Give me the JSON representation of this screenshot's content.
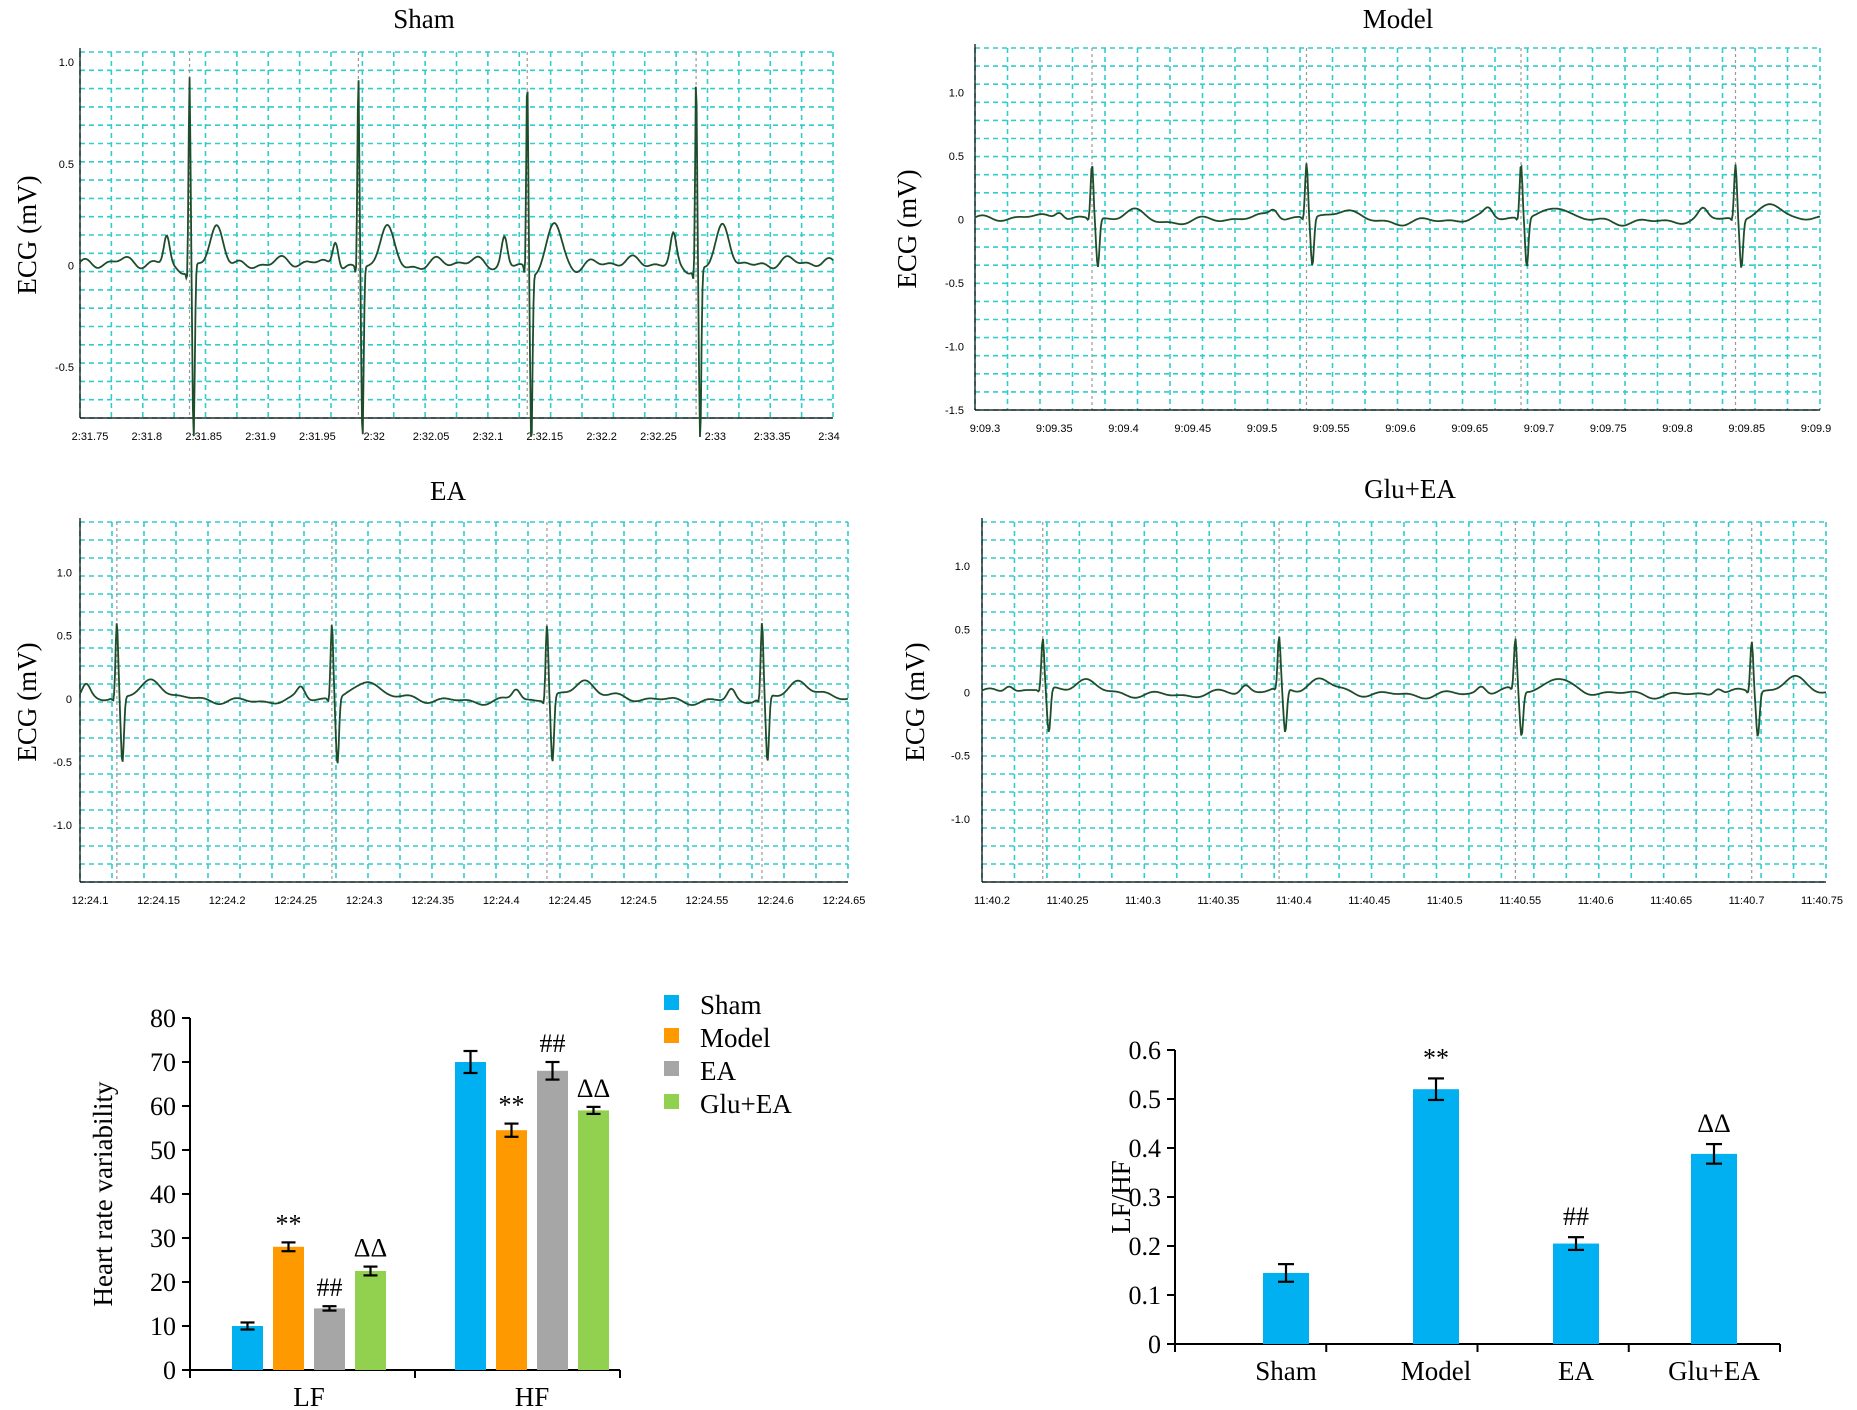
{
  "colors": {
    "grid": "#33cccc",
    "trace": "#1e4d2b",
    "sham": "#00b0f0",
    "model": "#ff9900",
    "ea": "#a6a6a6",
    "glu_ea": "#92d050",
    "bar_single": "#00b0f0",
    "axis": "#000000"
  },
  "chart_data": [
    {
      "type": "line",
      "title": "Sham",
      "ylabel": "ECG (mV)",
      "xlabel": "",
      "ylim": [
        -0.75,
        1.05
      ],
      "yticks": [
        {
          "v": 1.0,
          "label": "1.0"
        },
        {
          "v": 0.5,
          "label": "0.5"
        },
        {
          "v": 0.0,
          "label": "0"
        },
        {
          "v": -0.5,
          "label": "-0.5"
        }
      ],
      "xlim": [
        0,
        16.5
      ],
      "xticks": [
        "2:31.75",
        "2:31.8",
        "2:31.85",
        "2:31.9",
        "2:31.95",
        "2:32",
        "2:32.05",
        "2:32.1",
        "2:32.15",
        "2:32.2",
        "2:32.25",
        "2:33",
        "2:33.35",
        "2:34"
      ],
      "beats": [
        2.4,
        6.1,
        9.8,
        13.5
      ],
      "amp": 1.0,
      "series": [
        {
          "values": "generated from beats"
        }
      ]
    },
    {
      "type": "line",
      "title": "Model",
      "ylabel": "ECG (mV)",
      "xlabel": "",
      "ylim": [
        -1.5,
        1.35
      ],
      "yticks": [
        {
          "v": 1.0,
          "label": "1.0"
        },
        {
          "v": 0.5,
          "label": "0.5"
        },
        {
          "v": 0.0,
          "label": "0"
        },
        {
          "v": -0.5,
          "label": "-0.5"
        },
        {
          "v": -1.0,
          "label": "-1.0"
        },
        {
          "v": -1.5,
          "label": "-1.5"
        }
      ],
      "xlim": [
        0,
        13
      ],
      "xticks": [
        "9:09.3",
        "9:09.35",
        "9:09.4",
        "9:09.45",
        "9:09.5",
        "9:09.55",
        "9:09.6",
        "9:09.65",
        "9:09.7",
        "9:09.75",
        "9:09.8",
        "9:09.85",
        "9:09.9"
      ],
      "beats": [
        1.8,
        5.1,
        8.4,
        11.7
      ],
      "amp": 0.45
    },
    {
      "type": "line",
      "title": "EA",
      "ylabel": "ECG (mV)",
      "xlabel": "",
      "ylim": [
        -1.45,
        1.4
      ],
      "yticks": [
        {
          "v": 1.0,
          "label": "1.0"
        },
        {
          "v": 0.5,
          "label": "0.5"
        },
        {
          "v": 0.0,
          "label": "0"
        },
        {
          "v": -0.5,
          "label": "-0.5"
        },
        {
          "v": -1.0,
          "label": "-1.0"
        }
      ],
      "xlim": [
        0,
        12.5
      ],
      "xticks": [
        "12:24.1",
        "12:24.15",
        "12:24.2",
        "12:24.25",
        "12:24.3",
        "12:24.35",
        "12:24.4",
        "12:24.45",
        "12:24.5",
        "12:24.55",
        "12:24.6",
        "12:24.65"
      ],
      "beats": [
        0.6,
        4.1,
        7.6,
        11.1
      ],
      "amp": 0.62
    },
    {
      "type": "line",
      "title": "Glu+EA",
      "ylabel": "ECG (mV)",
      "xlabel": "",
      "ylim": [
        -1.5,
        1.35
      ],
      "yticks": [
        {
          "v": 1.0,
          "label": "1.0"
        },
        {
          "v": 0.5,
          "label": "0.5"
        },
        {
          "v": 0.0,
          "label": "0"
        },
        {
          "v": -0.5,
          "label": "-0.5"
        },
        {
          "v": -1.0,
          "label": "-1.0"
        }
      ],
      "xlim": [
        0,
        12.5
      ],
      "xticks": [
        "11:40.2",
        "11:40.25",
        "11:40.3",
        "11:40.35",
        "11:40.4",
        "11:40.45",
        "11:40.5",
        "11:40.55",
        "11:40.6",
        "11:40.65",
        "11:40.7",
        "11:40.75"
      ],
      "beats": [
        0.9,
        4.4,
        7.9,
        11.4
      ],
      "amp": 0.42
    },
    {
      "type": "bar",
      "title": "",
      "ylabel": "Heart rate variability",
      "xlabel": "",
      "ylim": [
        0,
        80
      ],
      "yticks": [
        0,
        10,
        20,
        30,
        40,
        50,
        60,
        70,
        80
      ],
      "categories": [
        "LF",
        "HF"
      ],
      "legend_position": "top-right",
      "series": [
        {
          "name": "Sham",
          "values": [
            10,
            70
          ],
          "errors": [
            0.8,
            2.5
          ],
          "annotations": [
            "",
            ""
          ]
        },
        {
          "name": "Model",
          "values": [
            28,
            54.5
          ],
          "errors": [
            1.0,
            1.5
          ],
          "annotations": [
            "**",
            "**"
          ]
        },
        {
          "name": "EA",
          "values": [
            14,
            68
          ],
          "errors": [
            0.5,
            2.0
          ],
          "annotations": [
            "##",
            "##"
          ]
        },
        {
          "name": "Glu+EA",
          "values": [
            22.5,
            59
          ],
          "errors": [
            1.0,
            0.8
          ],
          "annotations": [
            "ΔΔ",
            "ΔΔ"
          ]
        }
      ]
    },
    {
      "type": "bar",
      "title": "",
      "ylabel": "LF/HF",
      "xlabel": "",
      "ylim": [
        0,
        0.6
      ],
      "yticks": [
        "0",
        "0.1",
        "0.2",
        "0.3",
        "0.4",
        "0.5",
        "0.6"
      ],
      "categories": [
        "Sham",
        "Model",
        "EA",
        "Glu+EA"
      ],
      "values": [
        0.145,
        0.52,
        0.205,
        0.388
      ],
      "errors": [
        0.018,
        0.022,
        0.013,
        0.02
      ],
      "annotations": [
        "",
        "**",
        "##",
        "ΔΔ"
      ]
    }
  ]
}
